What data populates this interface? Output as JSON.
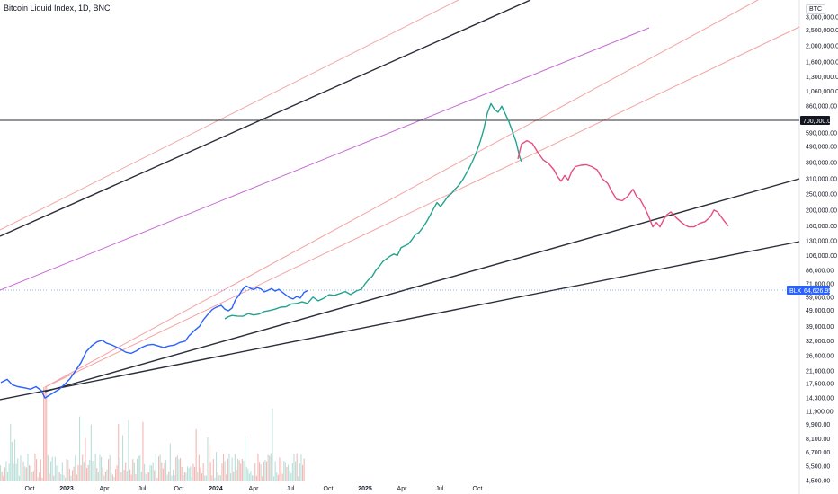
{
  "header": {
    "title": "Bitcoin Liquid Index, 1D, BNC",
    "currency": "BTC"
  },
  "chart_data": {
    "type": "line",
    "scale": "log",
    "y_axis_ticks": [
      {
        "label": "3,000,000.00",
        "value": 3000000
      },
      {
        "label": "2,500,000.00",
        "value": 2500000
      },
      {
        "label": "2,000,000.00",
        "value": 2000000
      },
      {
        "label": "1,600,000.00",
        "value": 1600000
      },
      {
        "label": "1,300,000.00",
        "value": 1300000
      },
      {
        "label": "1,060,000.00",
        "value": 1060000
      },
      {
        "label": "860,000.00",
        "value": 860000
      },
      {
        "label": "590,000.00",
        "value": 590000
      },
      {
        "label": "490,000.00",
        "value": 490000
      },
      {
        "label": "390,000.00",
        "value": 390000
      },
      {
        "label": "310,000.00",
        "value": 310000
      },
      {
        "label": "250,000.00",
        "value": 250000
      },
      {
        "label": "200,000.00",
        "value": 200000
      },
      {
        "label": "160,000.00",
        "value": 160000
      },
      {
        "label": "130,000.00",
        "value": 130000
      },
      {
        "label": "106,000.00",
        "value": 106000
      },
      {
        "label": "86,000.00",
        "value": 86000
      },
      {
        "label": "71,000.00",
        "value": 71000
      },
      {
        "label": "59,000.00",
        "value": 59000
      },
      {
        "label": "49,000.00",
        "value": 49000
      },
      {
        "label": "39,000.00",
        "value": 39000
      },
      {
        "label": "32,000.00",
        "value": 32000
      },
      {
        "label": "26,000.00",
        "value": 26000
      },
      {
        "label": "21,000.00",
        "value": 21000
      },
      {
        "label": "17,500.00",
        "value": 17500
      },
      {
        "label": "14,300.00",
        "value": 14300
      },
      {
        "label": "11,900.00",
        "value": 11900
      },
      {
        "label": "9,900.00",
        "value": 9900
      },
      {
        "label": "8,100.00",
        "value": 8100
      },
      {
        "label": "6,700.00",
        "value": 6700
      },
      {
        "label": "5,500.00",
        "value": 5500
      },
      {
        "label": "4,500.00",
        "value": 4500
      }
    ],
    "x_axis_ticks": [
      {
        "label": "Oct",
        "bold": false
      },
      {
        "label": "2023",
        "bold": true
      },
      {
        "label": "Apr",
        "bold": false
      },
      {
        "label": "Jul",
        "bold": false
      },
      {
        "label": "Oct",
        "bold": false
      },
      {
        "label": "2024",
        "bold": true
      },
      {
        "label": "Apr",
        "bold": false
      },
      {
        "label": "Jul",
        "bold": false
      },
      {
        "label": "Oct",
        "bold": false
      },
      {
        "label": "2025",
        "bold": true
      },
      {
        "label": "Apr",
        "bold": false
      },
      {
        "label": "Jul",
        "bold": false
      },
      {
        "label": "Oct",
        "bold": false
      }
    ],
    "horizontal_level": {
      "label": "700,000.00",
      "value": 700000
    },
    "last_price": {
      "symbol": "BLX",
      "label": "64,626.95",
      "value": 64626.95
    },
    "series": [
      {
        "color": "#2962ff",
        "points": [
          [
            1,
            17800
          ],
          [
            8,
            18600
          ],
          [
            14,
            17200
          ],
          [
            20,
            16800
          ],
          [
            28,
            16500
          ],
          [
            34,
            16200
          ],
          [
            40,
            16800
          ],
          [
            46,
            15900
          ],
          [
            50,
            14300
          ],
          [
            54,
            14800
          ],
          [
            60,
            15500
          ],
          [
            66,
            16200
          ],
          [
            72,
            17400
          ],
          [
            78,
            18800
          ],
          [
            84,
            21000
          ],
          [
            90,
            23500
          ],
          [
            96,
            27500
          ],
          [
            102,
            29800
          ],
          [
            108,
            31500
          ],
          [
            114,
            32200
          ],
          [
            118,
            31000
          ],
          [
            124,
            30200
          ],
          [
            128,
            29500
          ],
          [
            134,
            28400
          ],
          [
            140,
            27200
          ],
          [
            146,
            26800
          ],
          [
            152,
            27800
          ],
          [
            158,
            29200
          ],
          [
            164,
            30100
          ],
          [
            170,
            30400
          ],
          [
            176,
            29700
          ],
          [
            182,
            29100
          ],
          [
            188,
            29700
          ],
          [
            194,
            30100
          ],
          [
            200,
            31200
          ],
          [
            206,
            31800
          ],
          [
            210,
            34200
          ],
          [
            216,
            36800
          ],
          [
            222,
            39200
          ],
          [
            226,
            42800
          ],
          [
            230,
            45500
          ],
          [
            236,
            49500
          ],
          [
            240,
            51000
          ],
          [
            246,
            52500
          ],
          [
            250,
            49800
          ],
          [
            254,
            48700
          ],
          [
            258,
            50500
          ],
          [
            262,
            57000
          ],
          [
            266,
            60800
          ],
          [
            270,
            66000
          ],
          [
            274,
            69000
          ],
          [
            278,
            67000
          ],
          [
            282,
            65500
          ],
          [
            286,
            67500
          ],
          [
            290,
            66200
          ],
          [
            294,
            63500
          ],
          [
            298,
            64800
          ],
          [
            302,
            66500
          ],
          [
            306,
            64200
          ],
          [
            310,
            65800
          ],
          [
            314,
            63200
          ],
          [
            318,
            60800
          ],
          [
            322,
            58500
          ],
          [
            326,
            57500
          ],
          [
            330,
            59500
          ],
          [
            334,
            58200
          ],
          [
            338,
            63000
          ],
          [
            342,
            64626.95
          ]
        ]
      },
      {
        "color": "#22a38f",
        "points": [
          [
            250,
            43500
          ],
          [
            254,
            44800
          ],
          [
            258,
            45600
          ],
          [
            264,
            45200
          ],
          [
            270,
            45100
          ],
          [
            276,
            46800
          ],
          [
            282,
            45900
          ],
          [
            288,
            46500
          ],
          [
            294,
            48200
          ],
          [
            300,
            48900
          ],
          [
            306,
            49800
          ],
          [
            312,
            51200
          ],
          [
            318,
            51500
          ],
          [
            324,
            53500
          ],
          [
            330,
            54000
          ],
          [
            336,
            55200
          ],
          [
            342,
            54000
          ],
          [
            348,
            59000
          ],
          [
            354,
            56000
          ],
          [
            360,
            58000
          ],
          [
            366,
            61000
          ],
          [
            372,
            60500
          ],
          [
            378,
            62000
          ],
          [
            384,
            63800
          ],
          [
            390,
            61200
          ],
          [
            396,
            64200
          ],
          [
            402,
            66000
          ],
          [
            406,
            71000
          ],
          [
            410,
            75500
          ],
          [
            414,
            79000
          ],
          [
            418,
            86000
          ],
          [
            422,
            91000
          ],
          [
            426,
            97500
          ],
          [
            430,
            101000
          ],
          [
            434,
            105000
          ],
          [
            438,
            108000
          ],
          [
            442,
            106000
          ],
          [
            446,
            118000
          ],
          [
            450,
            121000
          ],
          [
            454,
            124000
          ],
          [
            458,
            132000
          ],
          [
            462,
            142000
          ],
          [
            466,
            146000
          ],
          [
            470,
            156000
          ],
          [
            474,
            168000
          ],
          [
            478,
            184000
          ],
          [
            482,
            203000
          ],
          [
            486,
            222000
          ],
          [
            490,
            210000
          ],
          [
            494,
            225000
          ],
          [
            498,
            242000
          ],
          [
            502,
            252000
          ],
          [
            506,
            268000
          ],
          [
            510,
            282000
          ],
          [
            514,
            302000
          ],
          [
            518,
            330000
          ],
          [
            522,
            362000
          ],
          [
            526,
            402000
          ],
          [
            530,
            452000
          ],
          [
            534,
            522000
          ],
          [
            538,
            622000
          ],
          [
            542,
            780000
          ],
          [
            546,
            890000
          ],
          [
            550,
            820000
          ],
          [
            554,
            790000
          ],
          [
            558,
            860000
          ],
          [
            562,
            770000
          ],
          [
            566,
            690000
          ],
          [
            570,
            600000
          ],
          [
            574,
            520000
          ],
          [
            578,
            420000
          ],
          [
            580,
            395000
          ]
        ]
      },
      {
        "color": "#e54d7e",
        "points": [
          [
            576,
            410000
          ],
          [
            580,
            505000
          ],
          [
            586,
            530000
          ],
          [
            592,
            510000
          ],
          [
            598,
            450000
          ],
          [
            604,
            405000
          ],
          [
            610,
            385000
          ],
          [
            616,
            352000
          ],
          [
            620,
            320000
          ],
          [
            624,
            300000
          ],
          [
            628,
            325000
          ],
          [
            632,
            305000
          ],
          [
            636,
            345000
          ],
          [
            640,
            368000
          ],
          [
            646,
            375000
          ],
          [
            652,
            378000
          ],
          [
            658,
            368000
          ],
          [
            664,
            352000
          ],
          [
            670,
            310000
          ],
          [
            676,
            290000
          ],
          [
            680,
            262000
          ],
          [
            686,
            232000
          ],
          [
            692,
            228000
          ],
          [
            698,
            242000
          ],
          [
            704,
            268000
          ],
          [
            708,
            242000
          ],
          [
            712,
            232000
          ],
          [
            718,
            202000
          ],
          [
            722,
            180000
          ],
          [
            726,
            158000
          ],
          [
            730,
            168000
          ],
          [
            734,
            158000
          ],
          [
            738,
            175000
          ],
          [
            742,
            188000
          ],
          [
            746,
            195000
          ],
          [
            752,
            180000
          ],
          [
            758,
            168000
          ],
          [
            762,
            162000
          ],
          [
            766,
            158000
          ],
          [
            772,
            158000
          ],
          [
            778,
            166000
          ],
          [
            784,
            170000
          ],
          [
            790,
            182000
          ],
          [
            794,
            200000
          ],
          [
            798,
            195000
          ],
          [
            802,
            182000
          ],
          [
            806,
            170000
          ],
          [
            810,
            160000
          ]
        ]
      }
    ]
  }
}
